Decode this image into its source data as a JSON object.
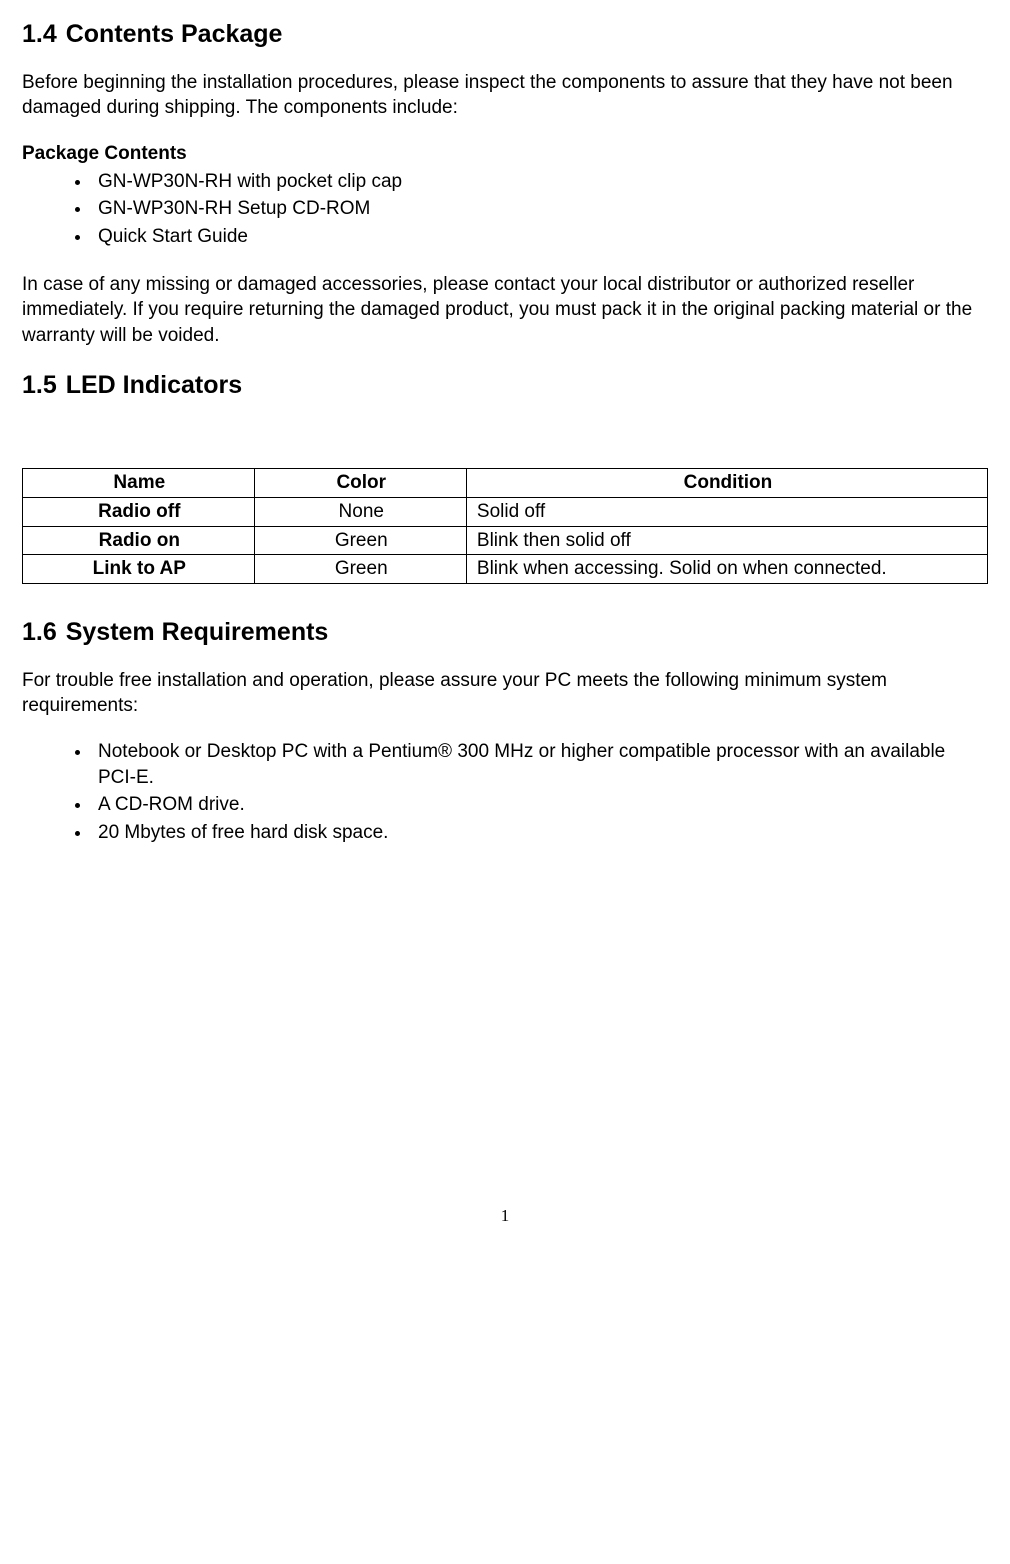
{
  "sections": {
    "contents_package": {
      "num": "1.4",
      "title": "Contents Package",
      "intro": "Before beginning the installation procedures, please inspect the components to assure that they have not been damaged during shipping. The components include:",
      "package_label": "Package Contents",
      "package_items": [
        "GN-WP30N-RH with pocket clip cap",
        "GN-WP30N-RH Setup CD-ROM",
        "Quick Start Guide"
      ],
      "warranty_note": "In case of any missing or damaged accessories, please contact your local distributor or authorized reseller immediately. If you require returning the damaged product, you must pack it in the original packing material or the warranty will be voided."
    },
    "led_indicators": {
      "num": "1.5",
      "title": "LED Indicators",
      "table": {
        "columns": [
          "Name",
          "Color",
          "Condition"
        ],
        "rows": [
          {
            "name": "Radio off",
            "color": "None",
            "condition": "Solid off"
          },
          {
            "name": "Radio on",
            "color": "Green",
            "condition": "Blink then solid off"
          },
          {
            "name": "Link to AP",
            "color": "Green",
            "condition": "Blink when accessing. Solid on when connected."
          }
        ]
      }
    },
    "system_requirements": {
      "num": "1.6",
      "title": "System Requirements",
      "intro": "For trouble free installation and operation, please assure your PC meets the following minimum system requirements:",
      "items": [
        "Notebook or Desktop PC with a Pentium® 300 MHz or higher compatible processor with an available PCI-E.",
        "A CD-ROM drive.",
        "20 Mbytes of free hard disk space."
      ]
    }
  },
  "page_number": "1"
}
